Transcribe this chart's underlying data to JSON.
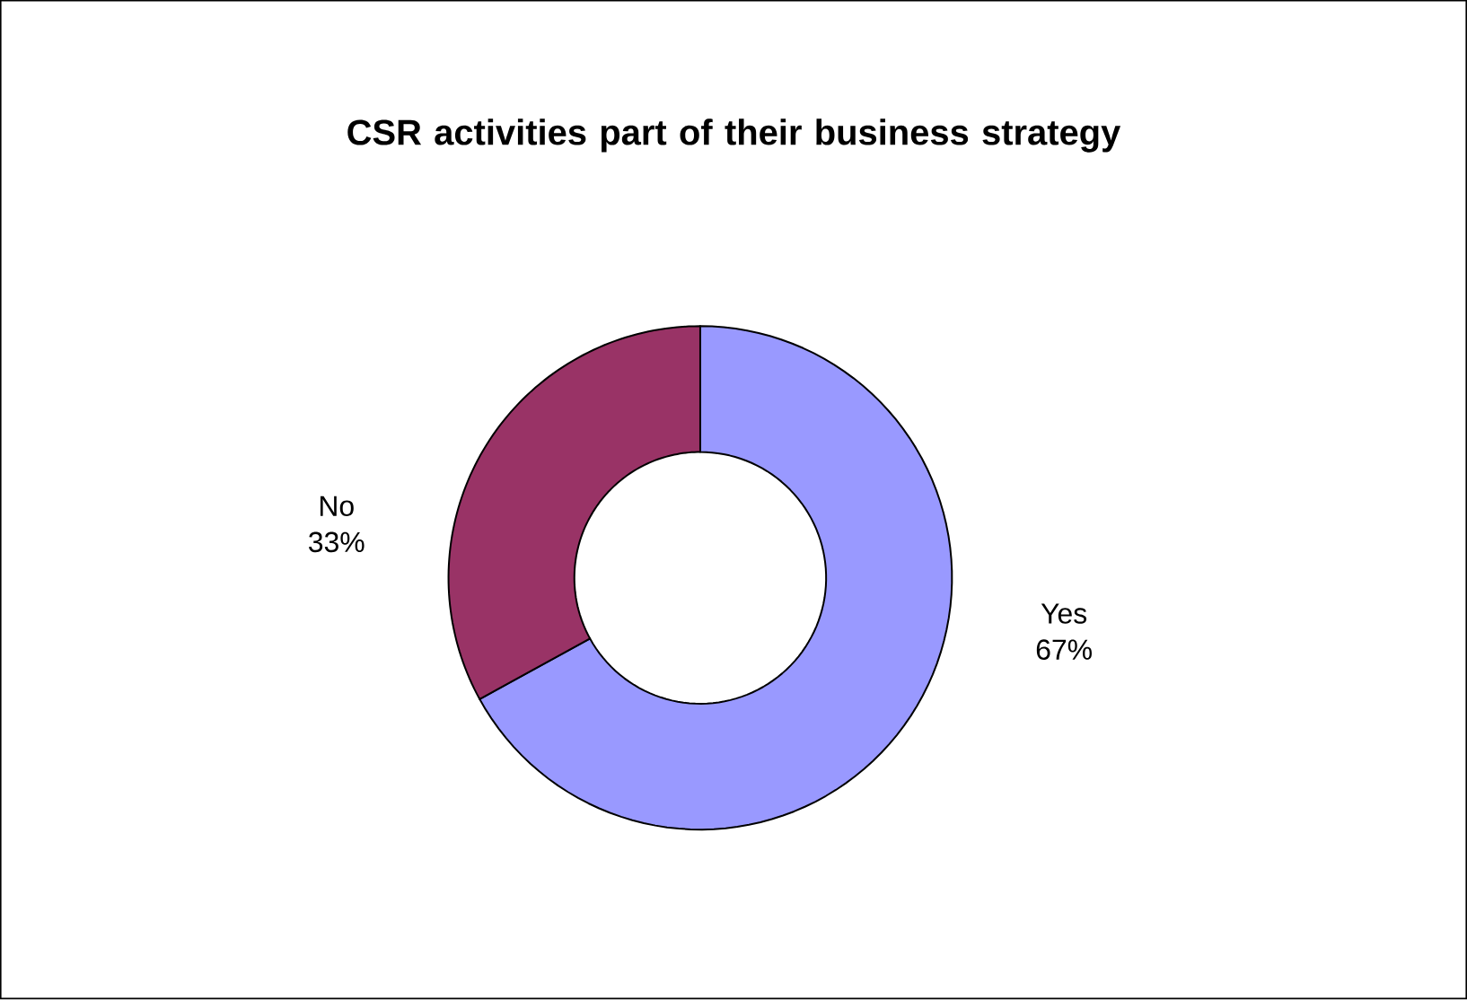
{
  "chart_data": {
    "type": "donut",
    "title": "CSR activities part of their business strategy",
    "categories": [
      "Yes",
      "No"
    ],
    "values": [
      67,
      33
    ],
    "value_labels": [
      "67%",
      "33%"
    ],
    "colors": [
      "#9999ff",
      "#993366"
    ]
  }
}
